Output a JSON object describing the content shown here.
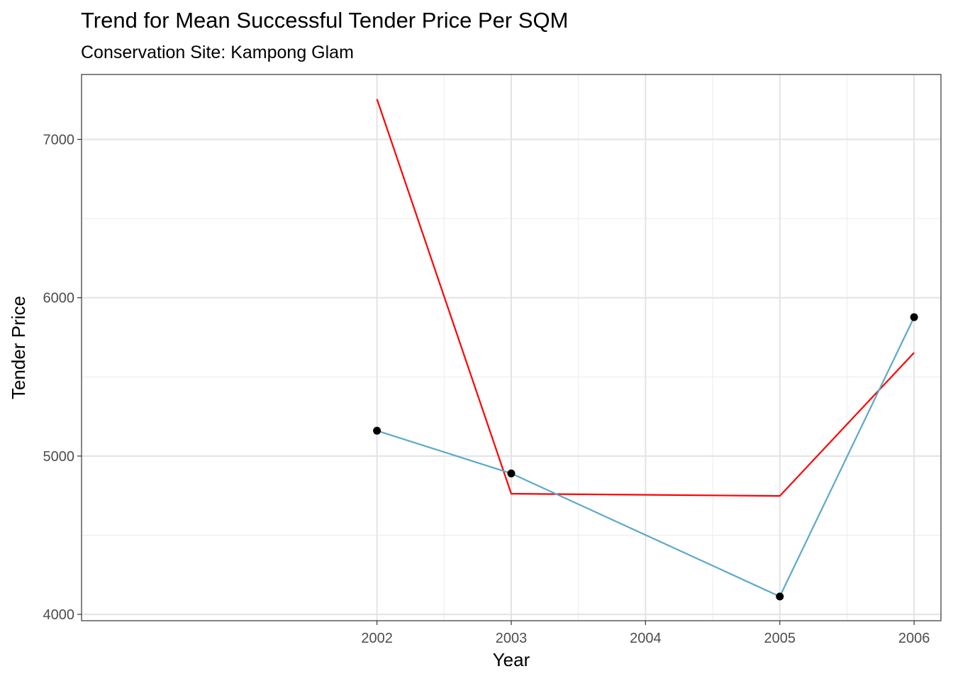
{
  "chart_data": {
    "type": "line",
    "title": "Trend for Mean Successful Tender Price Per SQM",
    "subtitle": "Conservation Site: Kampong Glam",
    "xlabel": "Year",
    "ylabel": "Tender Price",
    "x_ticks": [
      "2002",
      "2003",
      "2004",
      "2005",
      "2006"
    ],
    "y_ticks": [
      "4000",
      "5000",
      "6000",
      "7000"
    ],
    "xlim": [
      1999.8,
      2006.2
    ],
    "ylim": [
      3960,
      7410
    ],
    "grid": true,
    "legend": "none",
    "series": [
      {
        "color": "#ff0000",
        "show_points": false,
        "x": [
          2002,
          2003,
          2005,
          2006
        ],
        "y": [
          7255,
          4762,
          4748,
          5653
        ]
      },
      {
        "color": "#5ba9c9",
        "show_points": true,
        "point_color": "#000000",
        "x": [
          2002,
          2003,
          2005,
          2006
        ],
        "y": [
          5160,
          4890,
          4113,
          5877
        ]
      }
    ]
  }
}
